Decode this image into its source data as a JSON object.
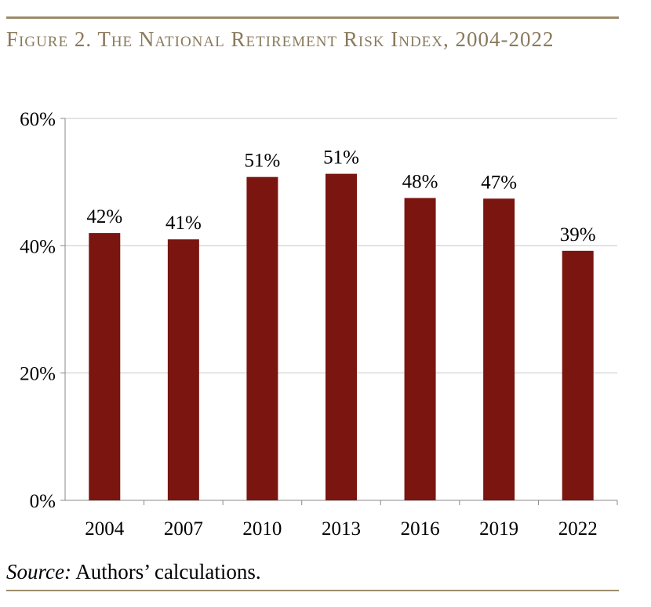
{
  "figure": {
    "title": "Figure 2. The National Retirement Risk Index, 2004-2022",
    "source_label": "Source:",
    "source_text": " Authors’ calculations."
  },
  "chart_data": {
    "type": "bar",
    "title": "Figure 2. The National Retirement Risk Index, 2004-2022",
    "xlabel": "",
    "ylabel": "",
    "categories": [
      "2004",
      "2007",
      "2010",
      "2013",
      "2016",
      "2019",
      "2022"
    ],
    "values": [
      42,
      41,
      51,
      51,
      48,
      47,
      39
    ],
    "bar_heights": [
      42.0,
      41.0,
      50.8,
      51.3,
      47.5,
      47.4,
      39.2
    ],
    "data_labels": [
      "42%",
      "41%",
      "51%",
      "51%",
      "48%",
      "47%",
      "39%"
    ],
    "ylim": [
      0,
      60
    ],
    "yticks": [
      0,
      20,
      40,
      60
    ],
    "ytick_labels": [
      "0%",
      "20%",
      "40%",
      "60%"
    ],
    "grid": true,
    "legend": "none",
    "bar_color": "#7a1510",
    "grid_color": "#c8c8c8"
  }
}
